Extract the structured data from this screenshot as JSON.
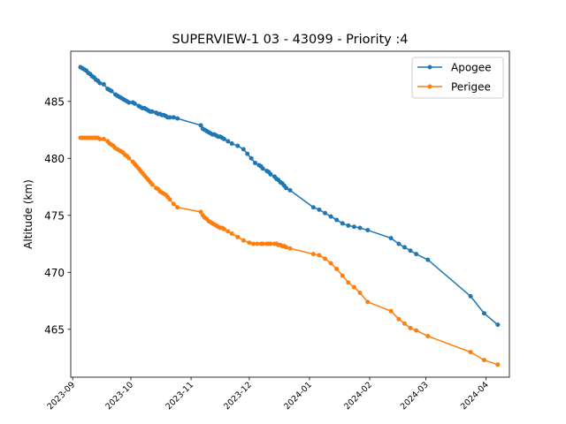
{
  "chart_data": {
    "type": "line",
    "title": "SUPERVIEW-1 03 - 43099 - Priority :4",
    "xlabel": "",
    "ylabel": "Altitude (km)",
    "xlim": [
      "2023-08-31",
      "2024-04-13"
    ],
    "ylim": [
      460.8,
      489.4
    ],
    "yticks": [
      465,
      470,
      475,
      480,
      485
    ],
    "xticks": [
      "2023-09",
      "2023-10",
      "2023-11",
      "2023-12",
      "2024-01",
      "2024-02",
      "2024-03",
      "2024-04"
    ],
    "xtick_dates": [
      "2023-09-01",
      "2023-10-01",
      "2023-11-01",
      "2023-12-01",
      "2024-01-01",
      "2024-02-01",
      "2024-03-01",
      "2024-04-01"
    ],
    "grid": false,
    "legend": "upper right",
    "series": [
      {
        "name": "Apogee",
        "color": "#1f77b4",
        "x": [
          "2023-09-05",
          "2023-09-06",
          "2023-09-07",
          "2023-09-08",
          "2023-09-09",
          "2023-09-10",
          "2023-09-11",
          "2023-09-12",
          "2023-09-13",
          "2023-09-14",
          "2023-09-15",
          "2023-09-17",
          "2023-09-19",
          "2023-09-20",
          "2023-09-21",
          "2023-09-23",
          "2023-09-24",
          "2023-09-25",
          "2023-09-26",
          "2023-09-27",
          "2023-09-28",
          "2023-09-29",
          "2023-09-30",
          "2023-10-02",
          "2023-10-03",
          "2023-10-05",
          "2023-10-06",
          "2023-10-07",
          "2023-10-08",
          "2023-10-09",
          "2023-10-10",
          "2023-10-11",
          "2023-10-12",
          "2023-10-14",
          "2023-10-15",
          "2023-10-16",
          "2023-10-17",
          "2023-10-18",
          "2023-10-19",
          "2023-10-20",
          "2023-10-21",
          "2023-10-23",
          "2023-10-25",
          "2023-11-06",
          "2023-11-07",
          "2023-11-08",
          "2023-11-09",
          "2023-11-10",
          "2023-11-11",
          "2023-11-12",
          "2023-11-13",
          "2023-11-14",
          "2023-11-15",
          "2023-11-16",
          "2023-11-17",
          "2023-11-18",
          "2023-11-20",
          "2023-11-22",
          "2023-11-25",
          "2023-11-28",
          "2023-11-30",
          "2023-12-02",
          "2023-12-04",
          "2023-12-06",
          "2023-12-07",
          "2023-12-08",
          "2023-12-10",
          "2023-12-11",
          "2023-12-12",
          "2023-12-14",
          "2023-12-15",
          "2023-12-16",
          "2023-12-17",
          "2023-12-18",
          "2023-12-19",
          "2023-12-20",
          "2023-12-22",
          "2024-01-03",
          "2024-01-06",
          "2024-01-09",
          "2024-01-12",
          "2024-01-15",
          "2024-01-18",
          "2024-01-21",
          "2024-01-24",
          "2024-01-27",
          "2024-01-31",
          "2024-02-12",
          "2024-02-16",
          "2024-02-19",
          "2024-02-22",
          "2024-02-25",
          "2024-03-02",
          "2024-03-24",
          "2024-03-31",
          "2024-04-07"
        ],
        "y": [
          488.0,
          487.9,
          487.8,
          487.7,
          487.5,
          487.4,
          487.2,
          487.1,
          486.9,
          486.8,
          486.6,
          486.5,
          486.1,
          486.0,
          485.9,
          485.6,
          485.5,
          485.4,
          485.3,
          485.2,
          485.1,
          485.0,
          484.9,
          484.9,
          484.8,
          484.6,
          484.5,
          484.4,
          484.4,
          484.3,
          484.2,
          484.1,
          484.1,
          484.0,
          483.9,
          483.9,
          483.8,
          483.8,
          483.7,
          483.6,
          483.6,
          483.6,
          483.5,
          482.9,
          482.6,
          482.5,
          482.4,
          482.3,
          482.2,
          482.1,
          482.1,
          482.0,
          481.9,
          481.9,
          481.8,
          481.7,
          481.5,
          481.3,
          481.1,
          480.8,
          480.4,
          480.0,
          479.6,
          479.4,
          479.3,
          479.1,
          478.9,
          478.8,
          478.6,
          478.4,
          478.2,
          478.1,
          477.9,
          477.8,
          477.6,
          477.4,
          477.2,
          475.7,
          475.5,
          475.2,
          474.9,
          474.6,
          474.3,
          474.1,
          474.0,
          473.9,
          473.7,
          473.0,
          472.5,
          472.2,
          471.9,
          471.6,
          471.1,
          467.9,
          466.4,
          465.4
        ]
      },
      {
        "name": "Perigee",
        "color": "#ff7f0e",
        "x": [
          "2023-09-05",
          "2023-09-06",
          "2023-09-07",
          "2023-09-08",
          "2023-09-09",
          "2023-09-10",
          "2023-09-11",
          "2023-09-12",
          "2023-09-13",
          "2023-09-14",
          "2023-09-15",
          "2023-09-17",
          "2023-09-19",
          "2023-09-20",
          "2023-09-21",
          "2023-09-22",
          "2023-09-23",
          "2023-09-24",
          "2023-09-25",
          "2023-09-26",
          "2023-09-27",
          "2023-09-28",
          "2023-09-29",
          "2023-09-30",
          "2023-10-02",
          "2023-10-03",
          "2023-10-04",
          "2023-10-05",
          "2023-10-06",
          "2023-10-07",
          "2023-10-08",
          "2023-10-09",
          "2023-10-10",
          "2023-10-11",
          "2023-10-12",
          "2023-10-14",
          "2023-10-15",
          "2023-10-16",
          "2023-10-17",
          "2023-10-18",
          "2023-10-19",
          "2023-10-20",
          "2023-10-21",
          "2023-10-23",
          "2023-10-25",
          "2023-11-06",
          "2023-11-07",
          "2023-11-08",
          "2023-11-09",
          "2023-11-10",
          "2023-11-11",
          "2023-11-12",
          "2023-11-13",
          "2023-11-14",
          "2023-11-15",
          "2023-11-16",
          "2023-11-17",
          "2023-11-18",
          "2023-11-20",
          "2023-11-22",
          "2023-11-25",
          "2023-11-28",
          "2023-12-01",
          "2023-12-03",
          "2023-12-05",
          "2023-12-07",
          "2023-12-08",
          "2023-12-10",
          "2023-12-11",
          "2023-12-12",
          "2023-12-14",
          "2023-12-15",
          "2023-12-16",
          "2023-12-17",
          "2023-12-18",
          "2023-12-19",
          "2023-12-20",
          "2023-12-22",
          "2024-01-03",
          "2024-01-06",
          "2024-01-09",
          "2024-01-12",
          "2024-01-15",
          "2024-01-18",
          "2024-01-21",
          "2024-01-24",
          "2024-01-27",
          "2024-01-31",
          "2024-02-12",
          "2024-02-16",
          "2024-02-19",
          "2024-02-22",
          "2024-02-25",
          "2024-03-02",
          "2024-03-24",
          "2024-03-31",
          "2024-04-07"
        ],
        "y": [
          481.8,
          481.8,
          481.8,
          481.8,
          481.8,
          481.8,
          481.8,
          481.8,
          481.8,
          481.8,
          481.7,
          481.7,
          481.5,
          481.3,
          481.2,
          481.1,
          480.9,
          480.8,
          480.7,
          480.6,
          480.5,
          480.3,
          480.2,
          480.0,
          479.7,
          479.5,
          479.3,
          479.1,
          478.9,
          478.7,
          478.5,
          478.3,
          478.1,
          477.9,
          477.7,
          477.4,
          477.3,
          477.1,
          477.0,
          476.9,
          476.8,
          476.6,
          476.4,
          476.0,
          475.7,
          475.3,
          475.0,
          474.8,
          474.7,
          474.5,
          474.4,
          474.3,
          474.2,
          474.1,
          474.0,
          473.9,
          473.9,
          473.8,
          473.6,
          473.4,
          473.1,
          472.8,
          472.6,
          472.5,
          472.5,
          472.5,
          472.5,
          472.5,
          472.5,
          472.5,
          472.5,
          472.5,
          472.4,
          472.4,
          472.3,
          472.3,
          472.2,
          472.1,
          471.6,
          471.5,
          471.2,
          470.8,
          470.3,
          469.7,
          469.1,
          468.7,
          468.2,
          467.4,
          466.6,
          465.9,
          465.5,
          465.1,
          464.9,
          464.4,
          463.0,
          462.3,
          461.9
        ]
      }
    ]
  }
}
